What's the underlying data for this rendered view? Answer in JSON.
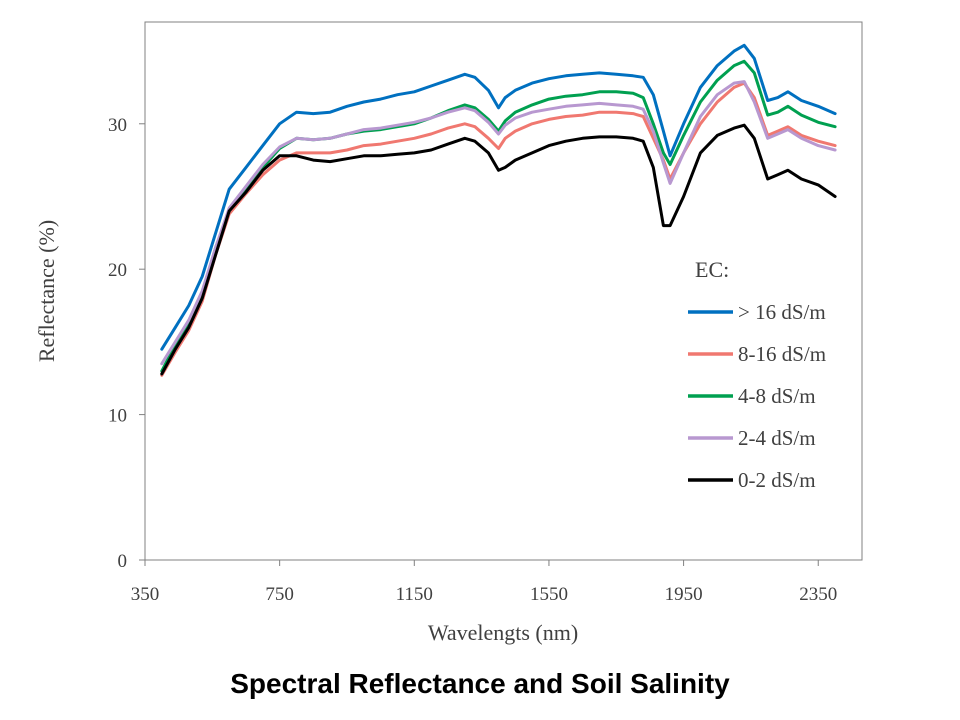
{
  "caption": "Spectral Reflectance and Soil Salinity",
  "chart_data": {
    "type": "line",
    "title": "",
    "xlabel": "Wavelengts (nm)",
    "ylabel": "Reflectance (%)",
    "xlim": [
      350,
      2480
    ],
    "ylim": [
      0,
      37
    ],
    "xticks": [
      350,
      750,
      1150,
      1550,
      1950,
      2350
    ],
    "yticks": [
      0,
      10,
      20,
      30
    ],
    "grid": false,
    "legend_title": "EC:",
    "legend_position": "right-center",
    "series": [
      {
        "name": "> 16 dS/m",
        "color": "#0070C0",
        "x": [
          400,
          440,
          480,
          520,
          560,
          600,
          650,
          700,
          750,
          800,
          850,
          900,
          950,
          1000,
          1050,
          1100,
          1150,
          1200,
          1250,
          1300,
          1330,
          1370,
          1400,
          1420,
          1450,
          1500,
          1550,
          1600,
          1650,
          1700,
          1750,
          1800,
          1830,
          1860,
          1890,
          1910,
          1950,
          2000,
          2050,
          2100,
          2130,
          2160,
          2200,
          2230,
          2260,
          2300,
          2350,
          2400
        ],
        "y": [
          14.5,
          16.0,
          17.5,
          19.5,
          22.5,
          25.5,
          27.0,
          28.5,
          30.0,
          30.8,
          30.7,
          30.8,
          31.2,
          31.5,
          31.7,
          32.0,
          32.2,
          32.6,
          33.0,
          33.4,
          33.2,
          32.3,
          31.1,
          31.8,
          32.3,
          32.8,
          33.1,
          33.3,
          33.4,
          33.5,
          33.4,
          33.3,
          33.2,
          32.0,
          29.5,
          27.8,
          30.0,
          32.5,
          34.0,
          35.0,
          35.4,
          34.5,
          31.6,
          31.8,
          32.2,
          31.6,
          31.2,
          30.7
        ]
      },
      {
        "name": "8-16 dS/m",
        "color": "#F07870",
        "x": [
          400,
          440,
          480,
          520,
          560,
          600,
          650,
          700,
          750,
          800,
          850,
          900,
          950,
          1000,
          1050,
          1100,
          1150,
          1200,
          1250,
          1300,
          1330,
          1370,
          1400,
          1420,
          1450,
          1500,
          1550,
          1600,
          1650,
          1700,
          1750,
          1800,
          1830,
          1860,
          1890,
          1910,
          1950,
          2000,
          2050,
          2100,
          2130,
          2160,
          2200,
          2230,
          2260,
          2300,
          2350,
          2400
        ],
        "y": [
          12.7,
          14.3,
          15.8,
          17.8,
          21.0,
          23.8,
          25.2,
          26.5,
          27.5,
          28.0,
          28.0,
          28.0,
          28.2,
          28.5,
          28.6,
          28.8,
          29.0,
          29.3,
          29.7,
          30.0,
          29.8,
          29.0,
          28.3,
          29.0,
          29.5,
          30.0,
          30.3,
          30.5,
          30.6,
          30.8,
          30.8,
          30.7,
          30.5,
          29.0,
          27.5,
          26.2,
          28.0,
          30.0,
          31.5,
          32.5,
          32.8,
          31.8,
          29.2,
          29.5,
          29.8,
          29.2,
          28.8,
          28.5
        ]
      },
      {
        "name": "4-8 dS/m",
        "color": "#00A050",
        "x": [
          400,
          440,
          480,
          520,
          560,
          600,
          650,
          700,
          750,
          800,
          850,
          900,
          950,
          1000,
          1050,
          1100,
          1150,
          1200,
          1250,
          1300,
          1330,
          1370,
          1400,
          1420,
          1450,
          1500,
          1550,
          1600,
          1650,
          1700,
          1750,
          1800,
          1830,
          1860,
          1890,
          1910,
          1950,
          2000,
          2050,
          2100,
          2130,
          2160,
          2200,
          2230,
          2260,
          2300,
          2350,
          2400
        ],
        "y": [
          13.0,
          14.8,
          16.3,
          18.3,
          21.5,
          24.0,
          25.5,
          27.0,
          28.3,
          29.0,
          28.9,
          29.0,
          29.3,
          29.5,
          29.6,
          29.8,
          30.0,
          30.4,
          30.9,
          31.3,
          31.1,
          30.3,
          29.5,
          30.2,
          30.8,
          31.3,
          31.7,
          31.9,
          32.0,
          32.2,
          32.2,
          32.1,
          31.8,
          30.0,
          28.0,
          27.2,
          29.2,
          31.5,
          33.0,
          34.0,
          34.3,
          33.5,
          30.6,
          30.8,
          31.2,
          30.6,
          30.1,
          29.8
        ]
      },
      {
        "name": "2-4 dS/m",
        "color": "#B898D0",
        "x": [
          400,
          440,
          480,
          520,
          560,
          600,
          650,
          700,
          750,
          800,
          850,
          900,
          950,
          1000,
          1050,
          1100,
          1150,
          1200,
          1250,
          1300,
          1330,
          1370,
          1400,
          1420,
          1450,
          1500,
          1550,
          1600,
          1650,
          1700,
          1750,
          1800,
          1830,
          1860,
          1890,
          1910,
          1950,
          2000,
          2050,
          2100,
          2130,
          2160,
          2200,
          2230,
          2260,
          2300,
          2350,
          2400
        ],
        "y": [
          13.5,
          15.0,
          16.5,
          18.5,
          21.5,
          24.2,
          25.7,
          27.2,
          28.4,
          29.0,
          28.9,
          29.0,
          29.3,
          29.6,
          29.7,
          29.9,
          30.1,
          30.4,
          30.8,
          31.1,
          30.9,
          30.1,
          29.3,
          29.9,
          30.4,
          30.8,
          31.0,
          31.2,
          31.3,
          31.4,
          31.3,
          31.2,
          31.0,
          29.5,
          27.3,
          25.9,
          28.0,
          30.5,
          32.0,
          32.8,
          32.9,
          31.5,
          29.0,
          29.3,
          29.6,
          29.0,
          28.5,
          28.2
        ]
      },
      {
        "name": "0-2 dS/m",
        "color": "#000000",
        "x": [
          400,
          440,
          480,
          520,
          560,
          600,
          650,
          700,
          750,
          800,
          850,
          900,
          950,
          1000,
          1050,
          1100,
          1150,
          1200,
          1250,
          1300,
          1330,
          1370,
          1400,
          1420,
          1450,
          1500,
          1550,
          1600,
          1650,
          1700,
          1750,
          1800,
          1830,
          1860,
          1890,
          1910,
          1950,
          2000,
          2050,
          2100,
          2130,
          2160,
          2200,
          2230,
          2260,
          2300,
          2350,
          2400
        ],
        "y": [
          12.8,
          14.5,
          16.0,
          18.0,
          21.0,
          24.0,
          25.3,
          26.8,
          27.8,
          27.8,
          27.5,
          27.4,
          27.6,
          27.8,
          27.8,
          27.9,
          28.0,
          28.2,
          28.6,
          29.0,
          28.8,
          28.0,
          26.8,
          27.0,
          27.5,
          28.0,
          28.5,
          28.8,
          29.0,
          29.1,
          29.1,
          29.0,
          28.8,
          27.0,
          23.0,
          23.0,
          25.0,
          28.0,
          29.2,
          29.7,
          29.9,
          29.0,
          26.2,
          26.5,
          26.8,
          26.2,
          25.8,
          25.0
        ]
      }
    ]
  }
}
